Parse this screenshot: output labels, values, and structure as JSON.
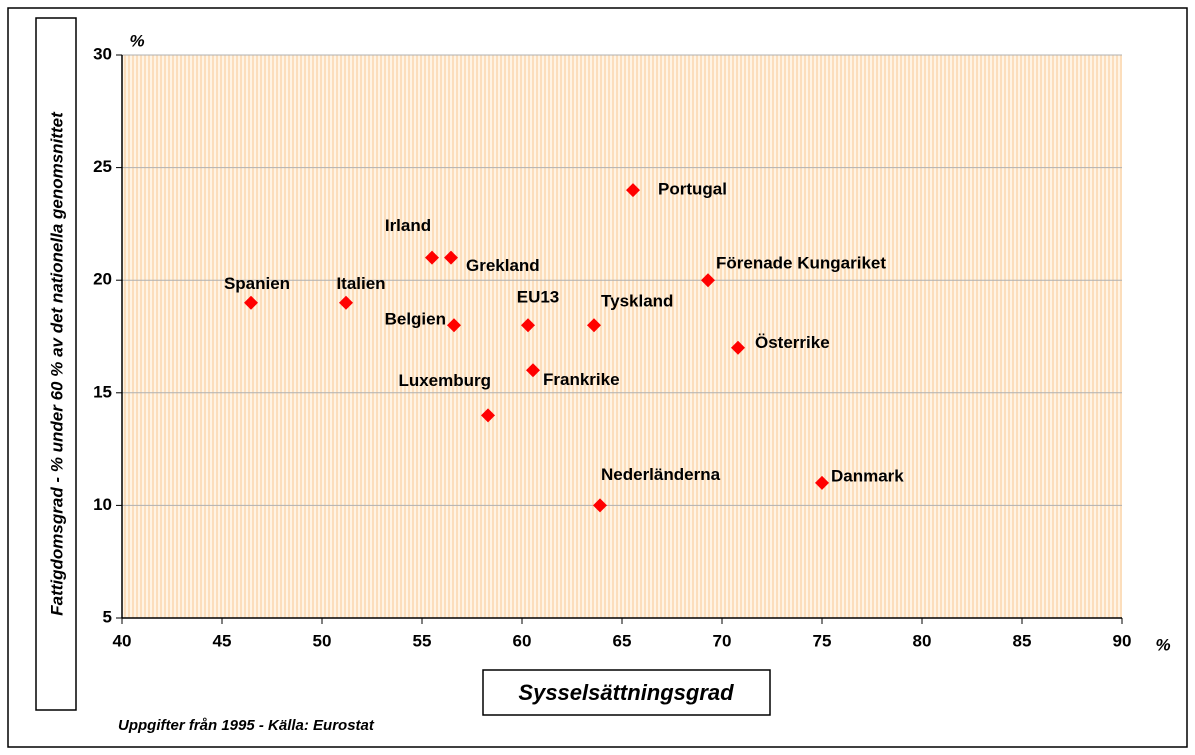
{
  "chart_data": {
    "type": "scatter",
    "y_label": "Fattigdomsgrad - % under 60 % av det nationella genomsnittet",
    "x_label": "Sysselsättningsgrad",
    "x_unit": "%",
    "y_unit": "%",
    "source": "Uppgifter från 1995 - Källa: Eurostat",
    "series": [
      {
        "color": "#ff0000",
        "point_labels": [
          "Spanien",
          "Italien",
          "Irland",
          "Grekland",
          "Belgien",
          "EU13",
          "Luxemburg",
          "Frankrike",
          "Tyskland",
          "Nederländerna",
          "Portugal",
          "Förenade Kungariket",
          "Österrike",
          "Danmark"
        ],
        "x": [
          46.45,
          51.2,
          55.5,
          56.45,
          56.6,
          60.3,
          58.3,
          60.55,
          63.6,
          63.9,
          65.55,
          69.3,
          70.8,
          75
        ],
        "values": [
          19,
          19,
          21,
          21,
          18,
          18,
          14,
          16,
          18,
          10,
          24,
          20,
          17,
          11
        ]
      }
    ],
    "xlim": [
      40,
      90
    ],
    "xticks": [
      40,
      45,
      50,
      55,
      60,
      65,
      70,
      75,
      80,
      85,
      90
    ],
    "ylim": [
      5,
      30
    ],
    "yticks": [
      5,
      10,
      15,
      20,
      25,
      30
    ],
    "grid": true
  }
}
